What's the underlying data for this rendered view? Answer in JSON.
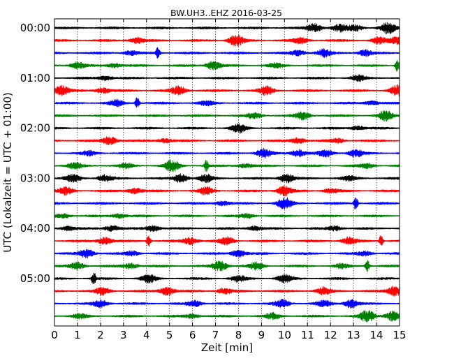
{
  "chart_data": {
    "type": "line",
    "title": "BW.UH3..EHZ 2016-03-25",
    "xlabel": "Zeit  [min]",
    "ylabel": "UTC (Lokalzeit = UTC + 01:00)",
    "xlim": [
      0,
      15
    ],
    "x_ticks": [
      "0",
      "1",
      "2",
      "3",
      "4",
      "5",
      "6",
      "7",
      "8",
      "9",
      "10",
      "11",
      "12",
      "13",
      "14",
      "15"
    ],
    "y_tick_labels": [
      "00:00",
      "01:00",
      "02:00",
      "03:00",
      "04:00",
      "05:00"
    ],
    "vertical_grid": "dotted, every 1 min",
    "trace_colors": [
      "#000000",
      "#ff0000",
      "#0000ff",
      "#008000"
    ],
    "traces": [
      {
        "start": "00:00",
        "color": "#000000",
        "events": [
          [
            11.3,
            6
          ],
          [
            12.4,
            5
          ],
          [
            13.1,
            4
          ],
          [
            14.5,
            8
          ]
        ]
      },
      {
        "start": "00:15",
        "color": "#ff0000",
        "events": [
          [
            3.6,
            4
          ],
          [
            7.9,
            8
          ],
          [
            10.7,
            4
          ],
          [
            14.1,
            4
          ],
          [
            14.9,
            5
          ]
        ]
      },
      {
        "start": "00:30",
        "color": "#0000ff",
        "events": [
          [
            3.3,
            3
          ],
          [
            4.5,
            9
          ],
          [
            10.6,
            4
          ],
          [
            11.7,
            5
          ],
          [
            13.5,
            4
          ]
        ]
      },
      {
        "start": "00:45",
        "color": "#008000",
        "events": [
          [
            1.0,
            5
          ],
          [
            2.6,
            3
          ],
          [
            6.9,
            6
          ],
          [
            9.6,
            3
          ],
          [
            14.9,
            9
          ]
        ]
      },
      {
        "start": "01:00",
        "color": "#000000",
        "events": [
          [
            2.2,
            3
          ],
          [
            13.2,
            4
          ]
        ]
      },
      {
        "start": "01:15",
        "color": "#ff0000",
        "events": [
          [
            0.3,
            7
          ],
          [
            2.1,
            4
          ],
          [
            5.4,
            6
          ],
          [
            9.2,
            6
          ],
          [
            14.9,
            7
          ]
        ]
      },
      {
        "start": "01:30",
        "color": "#0000ff",
        "events": [
          [
            2.7,
            4
          ],
          [
            3.6,
            10
          ],
          [
            6.6,
            3
          ],
          [
            13.8,
            3
          ]
        ]
      },
      {
        "start": "01:45",
        "color": "#008000",
        "events": [
          [
            8.7,
            4
          ],
          [
            10.8,
            5
          ],
          [
            14.4,
            7
          ]
        ]
      },
      {
        "start": "02:00",
        "color": "#000000",
        "events": [
          [
            8.0,
            6
          ],
          [
            13.2,
            3
          ]
        ]
      },
      {
        "start": "02:15",
        "color": "#ff0000",
        "events": [
          [
            2.4,
            6
          ],
          [
            4.8,
            3
          ],
          [
            10.6,
            4
          ],
          [
            12.3,
            3
          ]
        ]
      },
      {
        "start": "02:30",
        "color": "#0000ff",
        "events": [
          [
            1.5,
            3
          ],
          [
            9.1,
            6
          ],
          [
            10.6,
            5
          ],
          [
            11.8,
            5
          ],
          [
            13.1,
            5
          ]
        ]
      },
      {
        "start": "02:45",
        "color": "#008000",
        "events": [
          [
            0.9,
            4
          ],
          [
            3.1,
            3
          ],
          [
            5.1,
            8
          ],
          [
            6.6,
            9
          ],
          [
            8.3,
            3
          ],
          [
            13.6,
            3
          ]
        ]
      },
      {
        "start": "03:00",
        "color": "#000000",
        "events": [
          [
            0.8,
            5
          ],
          [
            2.2,
            5
          ],
          [
            5.5,
            6
          ],
          [
            6.6,
            5
          ],
          [
            10.1,
            6
          ],
          [
            12.8,
            3
          ]
        ]
      },
      {
        "start": "03:15",
        "color": "#ff0000",
        "events": [
          [
            0.5,
            5
          ],
          [
            3.5,
            4
          ],
          [
            6.6,
            5
          ],
          [
            10.0,
            7
          ],
          [
            12.0,
            3
          ]
        ]
      },
      {
        "start": "03:30",
        "color": "#0000ff",
        "events": [
          [
            7.3,
            3
          ],
          [
            10.0,
            8
          ],
          [
            13.1,
            10
          ]
        ]
      },
      {
        "start": "03:45",
        "color": "#008000",
        "events": [
          [
            0.4,
            3
          ],
          [
            2.8,
            3
          ],
          [
            8.4,
            3
          ]
        ]
      },
      {
        "start": "04:00",
        "color": "#000000",
        "events": [
          [
            0.6,
            3
          ],
          [
            2.5,
            4
          ],
          [
            4.3,
            4
          ],
          [
            8.7,
            3
          ],
          [
            12.2,
            3
          ]
        ]
      },
      {
        "start": "04:15",
        "color": "#ff0000",
        "events": [
          [
            2.2,
            5
          ],
          [
            4.1,
            10
          ],
          [
            5.9,
            5
          ],
          [
            7.5,
            5
          ],
          [
            12.8,
            5
          ],
          [
            14.2,
            9
          ]
        ]
      },
      {
        "start": "04:30",
        "color": "#0000ff",
        "events": [
          [
            1.4,
            6
          ],
          [
            3.4,
            3
          ],
          [
            8.0,
            5
          ],
          [
            13.5,
            3
          ]
        ]
      },
      {
        "start": "04:45",
        "color": "#008000",
        "events": [
          [
            1.0,
            5
          ],
          [
            3.3,
            4
          ],
          [
            7.2,
            7
          ],
          [
            8.8,
            5
          ],
          [
            12.5,
            3
          ],
          [
            13.6,
            10
          ]
        ]
      },
      {
        "start": "05:00",
        "color": "#000000",
        "events": [
          [
            1.7,
            11
          ],
          [
            4.1,
            5
          ],
          [
            8.0,
            4
          ],
          [
            10.0,
            5
          ]
        ]
      },
      {
        "start": "05:15",
        "color": "#ff0000",
        "events": [
          [
            2.1,
            5
          ],
          [
            4.9,
            6
          ],
          [
            7.4,
            4
          ],
          [
            11.7,
            5
          ],
          [
            14.8,
            7
          ]
        ]
      },
      {
        "start": "05:30",
        "color": "#0000ff",
        "events": [
          [
            2.0,
            5
          ],
          [
            6.1,
            4
          ],
          [
            9.9,
            5
          ],
          [
            11.7,
            4
          ],
          [
            12.9,
            6
          ]
        ]
      },
      {
        "start": "05:45",
        "color": "#008000",
        "events": [
          [
            1.1,
            3
          ],
          [
            6.0,
            3
          ],
          [
            9.5,
            4
          ],
          [
            13.6,
            8
          ],
          [
            14.7,
            7
          ]
        ]
      }
    ]
  }
}
